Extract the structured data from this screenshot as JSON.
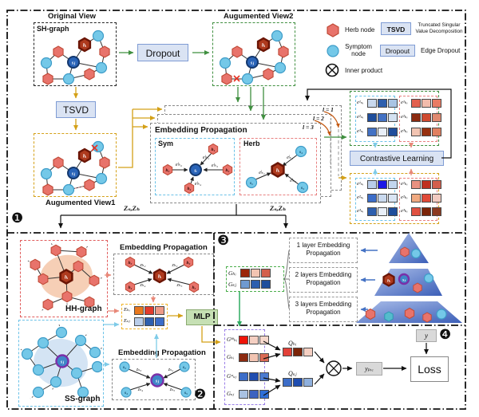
{
  "section1": {
    "badge": "❶",
    "original_view_label": "Original View",
    "sh_graph_label": "SH-graph",
    "dropout_btn": "Dropout",
    "tsvd_btn": "TSVD",
    "aug_view2_label": "Augumented View2",
    "aug_view1_label": "Augumented View1",
    "hi": "hᵢ",
    "sj": "sⱼ",
    "z_left": "Zₛ,Zₕ",
    "z_right": "Zₛ,Zₕ"
  },
  "legend": {
    "herb": "Herb node",
    "symptom": "Symptom node",
    "inner_product": "Inner product",
    "tsvd": "TSVD",
    "tsvd_desc": "Truncated Singular Value Decomposition",
    "dropout": "Dropout",
    "dropout_desc": "Edge Dropout"
  },
  "stack": {
    "title": "Embedding Propagation",
    "l1": "l = 1",
    "l2": "l = 2",
    "l3": "l = 3",
    "sym": {
      "title": "Sym",
      "center": "sᵢ",
      "nodes": [
        "h₁",
        "h₂",
        "h₃",
        "h₄"
      ],
      "edges": [
        "eˡₕ₁",
        "eˡₕ₂",
        "eˡₕ₃",
        "eˡₕ₄"
      ]
    },
    "herb": {
      "title": "Herb",
      "center": "hᵢ",
      "nodes": [
        "s₄",
        "s₁",
        "s₃"
      ],
      "edges": [
        "eˡₛ₄",
        "eˡₛ₁",
        "eˡₛ₃"
      ]
    }
  },
  "contrastive": {
    "label": "Contrastive Learning"
  },
  "view2_embeds": {
    "sym_labels": [
      "e¹ₛᵢ",
      "e²ₛᵢ",
      "e³ₛᵢ"
    ],
    "sym_cells": [
      [
        "#c9d9ee",
        "#2e5fae",
        "#a9c4e4"
      ],
      [
        "#1f4e9c",
        "#4472c4",
        "#d4e2f2"
      ],
      [
        "#4472c4",
        "#e9eff8",
        "#1f4e9c"
      ]
    ],
    "herb_labels": [
      "e¹ₕᵢ",
      "e²ₕᵢ",
      "e³ₕᵢ"
    ],
    "herb_cells": [
      [
        "#e2604e",
        "#f2bcac",
        "#e97b63"
      ],
      [
        "#8c2a10",
        "#cf4a30",
        "#e08a70"
      ],
      [
        "#f2c4b2",
        "#97300f",
        "#e08060"
      ]
    ]
  },
  "view1_embeds": {
    "sym_labels": [
      "e¹ₛᵢ",
      "e²ₛᵢ",
      "e³ₛᵢ"
    ],
    "sym_cells": [
      [
        "#b9cde9",
        "#1c18e6",
        "#c2d5ed"
      ],
      [
        "#3c6dc8",
        "#c9d9ee",
        "#dae5f4"
      ],
      [
        "#2e5fae",
        "#e9eff8",
        "#1f4e9c"
      ]
    ],
    "herb_labels": [
      "e¹ₕᵢ",
      "e²ₕᵢ",
      "e³ₕᵢ"
    ],
    "herb_cells": [
      [
        "#e99181",
        "#c03020",
        "#d35f4c"
      ],
      [
        "#f0a980",
        "#e04a38",
        "#f2cac0"
      ],
      [
        "#e05040",
        "#7b2408",
        "#8c3a20"
      ]
    ]
  },
  "section2": {
    "badge": "❷",
    "hh_label": "HH-graph",
    "ss_label": "SS-graph",
    "ep_hh_title": "Embedding Propagation",
    "ep_ss_title": "Embedding Propagation",
    "hh": {
      "center": "hᵢ",
      "nodes": [
        "h₂",
        "h₃",
        "h₄",
        "h₅"
      ],
      "z": [
        "zₕ₂",
        "zₕ₃",
        "zₕ₄",
        "zₕ₅"
      ]
    },
    "ss": {
      "center": "sⱼ",
      "nodes": [
        "s₃",
        "s₂",
        "s₄",
        "s₅"
      ],
      "z": [
        "zₛ₃",
        "zₛ₂",
        "zₛ₄",
        "zₛ₅"
      ]
    },
    "e_labels": [
      "Eₕᵢ",
      "Eₛⱼ"
    ],
    "e_cells": [
      [
        "#e8781e",
        "#e23c2c",
        "#ee9a86"
      ],
      [
        "#b9cde9",
        "#2e5fae",
        "#3c6dc8"
      ]
    ],
    "mlp": "MLP"
  },
  "section3": {
    "badge": "❸",
    "g_labels": [
      "Gₕᵢ",
      "Gₛⱼ"
    ],
    "g_cells": [
      [
        "#9b2408",
        "#f2c4b2",
        "#d35f4c"
      ],
      [
        "#6f9ad0",
        "#2e5fae",
        "#1f4e9c"
      ]
    ],
    "layers": [
      "1 layer Embedding Propagation",
      "2 layers Embedding Propagation",
      "3 layers Embedding Propagation"
    ],
    "pyramid": {
      "hi": "hᵢ",
      "sj": "sⱼ"
    }
  },
  "section4": {
    "badge": "❹",
    "g_labels": [
      "Gʰʰₕᵢ",
      "Gₕᵢ",
      "Gˢˢₛⱼ",
      "Gₛⱼ"
    ],
    "g_cells": [
      [
        "#ee1409",
        "#f4cfc2",
        "#f6d8cc"
      ],
      [
        "#8c2a10",
        "#f2c4b2",
        "#d96a55"
      ],
      [
        "#3c6dc8",
        "#1f4db0",
        "#4a7ad0"
      ],
      [
        "#a9c2e2",
        "#3c62c0",
        "#2e6fd8"
      ]
    ],
    "q_labels": [
      "Qₕᵢ",
      "Qₛⱼ"
    ],
    "q_cells": [
      [
        "#e24038",
        "#7b2408",
        "#f4cfc2"
      ],
      [
        "#3c6dc8",
        "#1f4db0",
        "#8fb0dd"
      ]
    ],
    "ypre": "yₚᵣₑ",
    "y": "y",
    "loss": "Loss"
  },
  "colors": {
    "herb_node": "#e8736b",
    "herb_node_highlight": "#ae3a1e",
    "symptom_node": "#74c8e8",
    "symptom_node_highlight": "#2a64b8",
    "gold_arrow": "#d4a017",
    "green_arrow": "#3f8f3f"
  }
}
